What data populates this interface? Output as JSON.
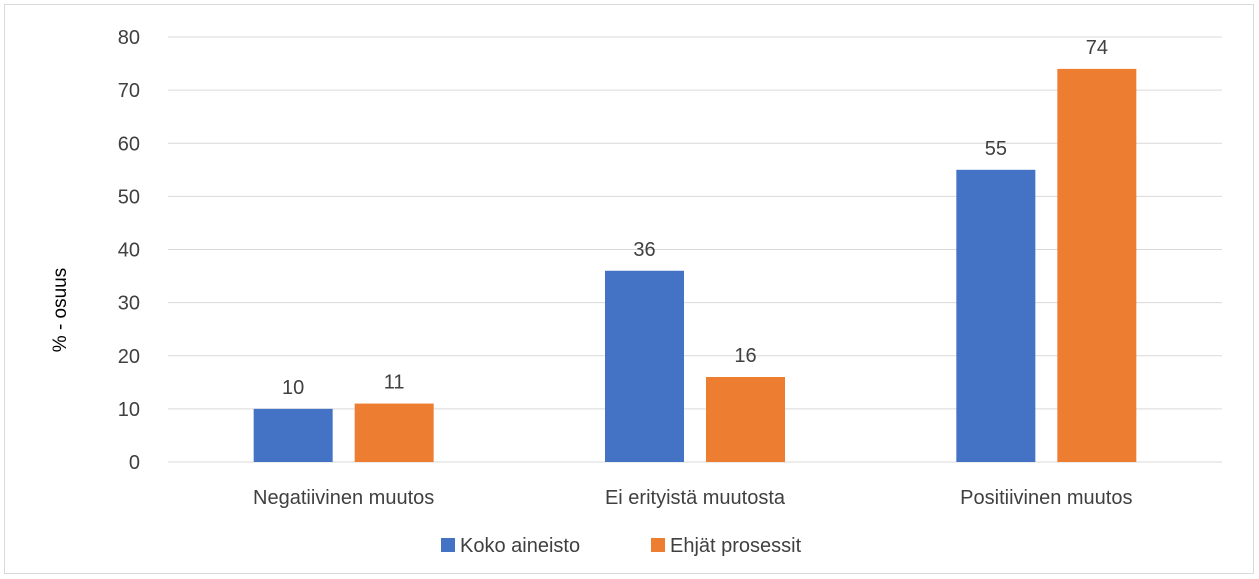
{
  "chart_data": {
    "type": "bar",
    "categories": [
      "Negatiivinen muutos",
      "Ei erityistä muutosta",
      "Positiivinen muutos"
    ],
    "series": [
      {
        "name": "Koko aineisto",
        "values": [
          10,
          36,
          55
        ],
        "color": "#4472C4"
      },
      {
        "name": "Ehjät prosessit",
        "values": [
          11,
          16,
          74
        ],
        "color": "#ED7D31"
      }
    ],
    "ylabel": "% - osuus",
    "xlabel": "",
    "ylim": [
      0,
      80
    ],
    "yticks": [
      0,
      10,
      20,
      30,
      40,
      50,
      60,
      70,
      80
    ],
    "grid": true,
    "legend_position": "bottom",
    "data_labels": true
  }
}
